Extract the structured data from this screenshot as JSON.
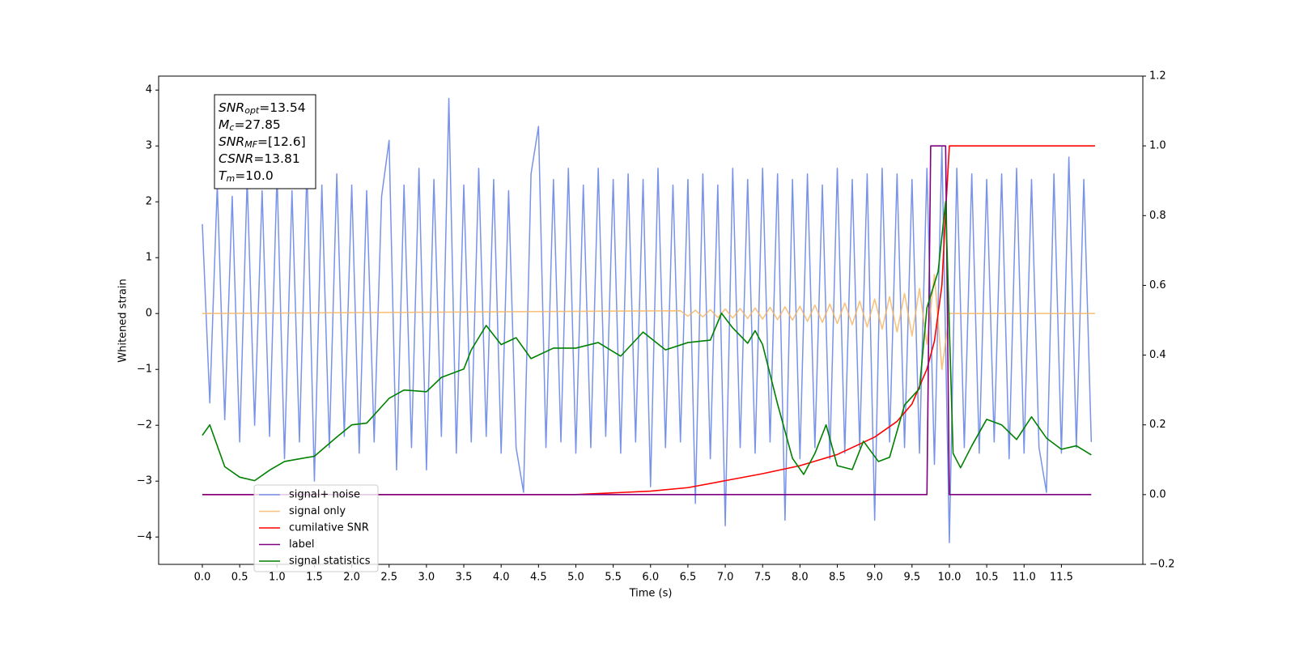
{
  "chart_data": {
    "type": "line",
    "xlabel": "Time (s)",
    "ylabel": "Whitened strain",
    "xlim": [
      -0.585,
      12.59
    ],
    "ylim": [
      -4.49,
      4.25
    ],
    "y2lim": [
      -0.2,
      1.2
    ],
    "xticks": [
      {
        "value": 0,
        "label": "0.0"
      },
      0.5,
      {
        "value": 1,
        "label": "1.0"
      },
      1.5,
      {
        "value": 2,
        "label": "2.0"
      },
      2.5,
      {
        "value": 3,
        "label": "3.0"
      },
      3.5,
      {
        "value": 4,
        "label": "4.0"
      },
      4.5,
      {
        "value": 5,
        "label": "5.0"
      },
      5.5,
      {
        "value": 6,
        "label": "6.0"
      },
      6.5,
      {
        "value": 7,
        "label": "7.0"
      },
      7.5,
      {
        "value": 8,
        "label": "8.0"
      },
      8.5,
      {
        "value": 9,
        "label": "9.0"
      },
      9.5,
      {
        "value": 10,
        "label": "10.0"
      },
      10.5,
      {
        "value": 11,
        "label": "11.0"
      },
      11.5
    ],
    "yticks": [
      {
        "value": -4,
        "label": "−4"
      },
      {
        "value": -3,
        "label": "−3"
      },
      {
        "value": -2,
        "label": "−2"
      },
      {
        "value": -1,
        "label": "−1"
      },
      0,
      1,
      2,
      3,
      4
    ],
    "y2ticks": [
      {
        "value": -0.2,
        "label": "−0.2"
      },
      {
        "value": 0,
        "label": "0.0"
      },
      0.2,
      0.4,
      0.6,
      0.8,
      {
        "value": 1,
        "label": "1.0"
      },
      1.2
    ],
    "legend": "lower left",
    "annotation": [
      {
        "symbol": "SNR",
        "subscript": "opt",
        "text": "=13.54"
      },
      {
        "symbol": "M",
        "subscript": "c",
        "text": "=27.85"
      },
      {
        "symbol": "SNR",
        "subscript": "MF",
        "text": "=[12.6]"
      },
      {
        "symbol": "CSNR",
        "text": "=13.81"
      },
      {
        "symbol": "T",
        "subscript": "m",
        "text": "=10.0"
      }
    ],
    "series": [
      {
        "name": "signal+ noise",
        "color": "#7893e8",
        "x": [
          0.0,
          0.1,
          0.2,
          0.3,
          0.4,
          0.5,
          0.6,
          0.7,
          0.8,
          0.9,
          1.0,
          1.1,
          1.2,
          1.3,
          1.4,
          1.5,
          1.6,
          1.7,
          1.8,
          1.9,
          2.0,
          2.1,
          2.2,
          2.3,
          2.4,
          2.5,
          2.6,
          2.7,
          2.8,
          2.9,
          3.0,
          3.1,
          3.2,
          3.3,
          3.4,
          3.5,
          3.6,
          3.7,
          3.8,
          3.9,
          4.0,
          4.1,
          4.2,
          4.3,
          4.4,
          4.5,
          4.6,
          4.7,
          4.8,
          4.9,
          5.0,
          5.1,
          5.2,
          5.3,
          5.4,
          5.5,
          5.6,
          5.7,
          5.8,
          5.9,
          6.0,
          6.1,
          6.2,
          6.3,
          6.4,
          6.5,
          6.6,
          6.7,
          6.8,
          6.9,
          7.0,
          7.1,
          7.2,
          7.3,
          7.4,
          7.5,
          7.6,
          7.7,
          7.8,
          7.9,
          8.0,
          8.1,
          8.2,
          8.3,
          8.4,
          8.5,
          8.6,
          8.7,
          8.8,
          8.9,
          9.0,
          9.1,
          9.2,
          9.3,
          9.4,
          9.5,
          9.6,
          9.7,
          9.8,
          9.9,
          10.0,
          10.1,
          10.2,
          10.3,
          10.4,
          10.5,
          10.6,
          10.7,
          10.8,
          10.9,
          11.0,
          11.1,
          11.2,
          11.3,
          11.4,
          11.5,
          11.6,
          11.7,
          11.8,
          11.9
        ],
        "values": [
          1.6,
          -1.6,
          2.3,
          -1.9,
          2.1,
          -2.3,
          2.4,
          -2.0,
          2.2,
          -2.2,
          2.5,
          -2.6,
          2.2,
          -2.3,
          2.6,
          -3.0,
          2.3,
          -2.4,
          2.5,
          -2.2,
          2.3,
          -2.5,
          2.2,
          -2.3,
          2.1,
          3.1,
          -2.8,
          2.3,
          -2.4,
          2.6,
          -2.8,
          2.4,
          -2.2,
          3.85,
          -2.5,
          2.3,
          -2.3,
          2.6,
          -2.2,
          2.4,
          -2.5,
          2.2,
          -2.4,
          -3.2,
          2.5,
          3.35,
          -2.4,
          2.4,
          -2.3,
          2.6,
          -2.5,
          2.3,
          -2.4,
          2.6,
          -2.2,
          2.4,
          -2.5,
          2.5,
          -2.3,
          2.4,
          -3.1,
          2.6,
          -2.4,
          2.3,
          -2.3,
          2.4,
          -3.4,
          2.5,
          -2.6,
          2.3,
          -3.8,
          2.6,
          -2.4,
          2.4,
          -2.5,
          2.6,
          -2.3,
          2.5,
          -3.7,
          2.4,
          -2.6,
          2.5,
          -2.4,
          2.3,
          -2.6,
          2.6,
          -2.5,
          2.4,
          -2.4,
          2.5,
          -3.7,
          2.6,
          -2.3,
          2.5,
          -2.4,
          2.4,
          -2.5,
          2.6,
          -2.7,
          3.0,
          -4.1,
          2.6,
          -2.4,
          2.5,
          -2.5,
          2.4,
          -2.3,
          2.5,
          -2.6,
          2.6,
          -2.5,
          2.4,
          -2.4,
          -3.2,
          2.5,
          -2.5,
          2.8,
          -2.4,
          2.4,
          -2.3
        ]
      },
      {
        "name": "signal only",
        "color": "#f5b45f",
        "x": [
          0.0,
          6.4,
          6.5,
          6.6,
          6.7,
          6.8,
          6.9,
          7.0,
          7.1,
          7.2,
          7.3,
          7.4,
          7.5,
          7.6,
          7.7,
          7.8,
          7.9,
          8.0,
          8.1,
          8.2,
          8.3,
          8.4,
          8.5,
          8.6,
          8.7,
          8.8,
          8.9,
          9.0,
          9.1,
          9.2,
          9.3,
          9.4,
          9.5,
          9.6,
          9.7,
          9.8,
          9.9,
          10.0,
          11.95
        ],
        "values": [
          0,
          0.05,
          -0.05,
          0.06,
          -0.06,
          0.07,
          -0.07,
          0.08,
          -0.08,
          0.09,
          -0.09,
          0.1,
          -0.1,
          0.11,
          -0.11,
          0.12,
          -0.12,
          0.13,
          -0.14,
          0.15,
          -0.16,
          0.17,
          -0.18,
          0.19,
          -0.2,
          0.22,
          -0.24,
          0.26,
          -0.28,
          0.3,
          -0.33,
          0.36,
          -0.4,
          0.45,
          -0.55,
          0.7,
          -1.0,
          0,
          0
        ]
      },
      {
        "name": "cumilative SNR",
        "color": "#ff0000",
        "axis": "y2",
        "x": [
          0.0,
          5.0,
          6.0,
          6.5,
          7.0,
          7.5,
          8.0,
          8.5,
          9.0,
          9.3,
          9.5,
          9.7,
          9.8,
          9.9,
          9.95,
          10.0,
          11.95
        ],
        "values": [
          0,
          0,
          0.01,
          0.02,
          0.04,
          0.06,
          0.083,
          0.115,
          0.165,
          0.21,
          0.26,
          0.36,
          0.44,
          0.6,
          0.81,
          1.0,
          1.0
        ]
      },
      {
        "name": "label",
        "color": "#800080",
        "axis": "y2",
        "x": [
          0.0,
          9.7,
          9.75,
          9.95,
          10.0,
          11.9
        ],
        "values": [
          0,
          0,
          1,
          1,
          0,
          0
        ]
      },
      {
        "name": "signal statistics",
        "color": "#008000",
        "axis": "y2",
        "x": [
          0.0,
          0.1,
          0.3,
          0.5,
          0.7,
          0.9,
          1.1,
          1.5,
          1.8,
          2.0,
          2.2,
          2.5,
          2.7,
          3.0,
          3.2,
          3.5,
          3.6,
          3.8,
          4.0,
          4.2,
          4.4,
          4.7,
          5.0,
          5.3,
          5.6,
          5.9,
          6.2,
          6.5,
          6.8,
          6.95,
          7.1,
          7.3,
          7.4,
          7.5,
          7.7,
          7.9,
          8.05,
          8.2,
          8.35,
          8.5,
          8.7,
          8.85,
          9.05,
          9.2,
          9.4,
          9.6,
          9.7,
          9.85,
          9.95,
          10.05,
          10.15,
          10.3,
          10.5,
          10.7,
          10.9,
          11.1,
          11.3,
          11.5,
          11.7,
          11.9
        ],
        "values": [
          0.17,
          0.2,
          0.08,
          0.05,
          0.04,
          0.07,
          0.095,
          0.11,
          0.165,
          0.2,
          0.205,
          0.276,
          0.3,
          0.295,
          0.336,
          0.36,
          0.415,
          0.485,
          0.43,
          0.45,
          0.39,
          0.42,
          0.42,
          0.436,
          0.397,
          0.466,
          0.415,
          0.436,
          0.443,
          0.52,
          0.478,
          0.434,
          0.47,
          0.43,
          0.26,
          0.104,
          0.058,
          0.118,
          0.2,
          0.083,
          0.072,
          0.153,
          0.095,
          0.107,
          0.257,
          0.304,
          0.536,
          0.64,
          0.84,
          0.118,
          0.077,
          0.14,
          0.216,
          0.2,
          0.158,
          0.223,
          0.162,
          0.13,
          0.14,
          0.114
        ]
      }
    ]
  }
}
